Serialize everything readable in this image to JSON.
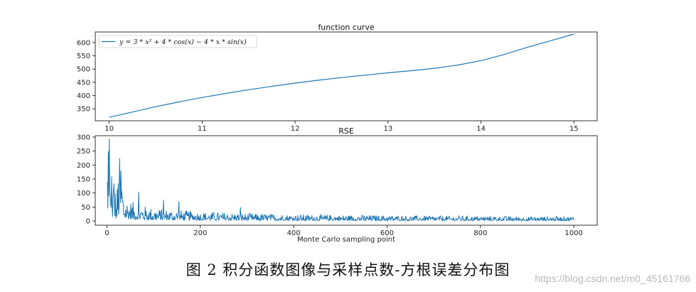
{
  "chart_data": [
    {
      "type": "line",
      "title": "function curve",
      "xlabel": "",
      "ylabel": "",
      "xlim": [
        9.85,
        15.25
      ],
      "ylim": [
        305,
        640
      ],
      "xticks": [
        10,
        11,
        12,
        13,
        14,
        15
      ],
      "yticks": [
        350,
        400,
        450,
        500,
        550,
        600
      ],
      "legend": {
        "placement": "top-left",
        "entries": [
          "y = 3 * x² + 4 * cos(x) − 4 * x * sin(x)"
        ]
      },
      "grid": false,
      "series": [
        {
          "name": "y = 3 * x² + 4 * cos(x) − 4 * x * sin(x)",
          "color": "#1f77b4",
          "x": [
            10.0,
            10.25,
            10.5,
            10.75,
            11.0,
            11.25,
            11.5,
            11.75,
            12.0,
            12.25,
            12.5,
            12.75,
            13.0,
            13.25,
            13.5,
            13.75,
            14.0,
            14.25,
            14.5,
            14.75,
            15.0
          ],
          "y": [
            318,
            338,
            358,
            376,
            393,
            408,
            422,
            435,
            447,
            458,
            468,
            477,
            486,
            494,
            503,
            515,
            532,
            555,
            582,
            607,
            632
          ]
        }
      ]
    },
    {
      "type": "line",
      "title": "RSE",
      "xlabel": "Monte Carlo sampling point",
      "ylabel": "",
      "xlim": [
        -25,
        1050
      ],
      "ylim": [
        -15,
        305
      ],
      "xticks": [
        0,
        200,
        400,
        600,
        800,
        1000
      ],
      "yticks": [
        0,
        50,
        100,
        150,
        200,
        250,
        300
      ],
      "grid": false,
      "series": [
        {
          "name": "",
          "color": "#1f77b4",
          "x": [
            1,
            2,
            3,
            4,
            5,
            6,
            7,
            8,
            10,
            15,
            20,
            25,
            30,
            35,
            40,
            50,
            60,
            70,
            80,
            100,
            150,
            200,
            250,
            300,
            400,
            500,
            600,
            700,
            800,
            900,
            1000
          ],
          "y": [
            140,
            45,
            250,
            90,
            295,
            120,
            80,
            60,
            50,
            110,
            40,
            120,
            140,
            60,
            45,
            40,
            35,
            32,
            30,
            25,
            22,
            18,
            17,
            15,
            13,
            12,
            11,
            10,
            10,
            9,
            9
          ]
        }
      ]
    }
  ],
  "caption": "图 2 积分函数图像与采样点数-方根误差分布图",
  "watermark": "https://blog.csdn.net/m0_45161766"
}
